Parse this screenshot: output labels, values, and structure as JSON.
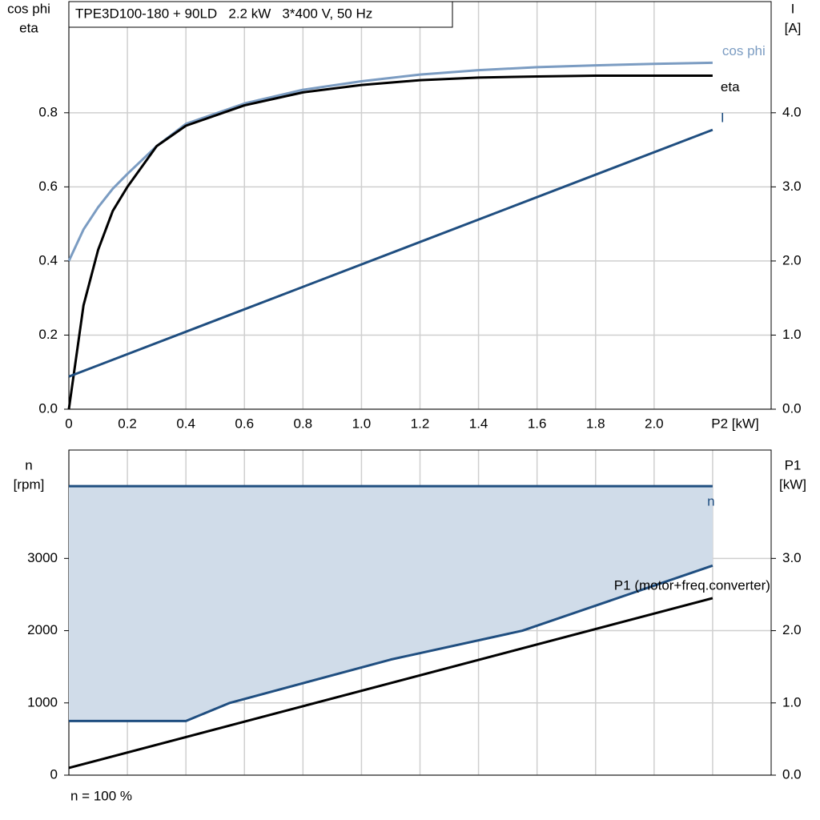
{
  "chart_data": [
    {
      "type": "line",
      "title": "TPE3D100-180 + 90LD   2.2 kW   3*400 V, 50 Hz",
      "ylabel": [
        "cos phi",
        "eta"
      ],
      "y2label": [
        "I",
        "[A]"
      ],
      "xlabel": "P2 [kW]",
      "x": [
        0,
        0.05,
        0.1,
        0.15,
        0.2,
        0.3,
        0.4,
        0.6,
        0.8,
        1.0,
        1.2,
        1.4,
        1.6,
        1.8,
        2.0,
        2.2
      ],
      "series": [
        {
          "name": "cos phi",
          "color": "#7b9cc2",
          "values": [
            0.4,
            0.485,
            0.545,
            0.595,
            0.635,
            0.71,
            0.77,
            0.825,
            0.862,
            0.885,
            0.903,
            0.915,
            0.923,
            0.928,
            0.932,
            0.935
          ]
        },
        {
          "name": "eta",
          "color": "#000000",
          "values": [
            0,
            0.28,
            0.43,
            0.535,
            0.6,
            0.71,
            0.765,
            0.82,
            0.855,
            0.875,
            0.888,
            0.895,
            0.898,
            0.9,
            0.9,
            0.9
          ]
        },
        {
          "name": "I",
          "color": "#1f4e80",
          "axis": "y2",
          "x": [
            0,
            2.2
          ],
          "values": [
            0.44,
            3.77
          ]
        }
      ],
      "xlim": [
        0,
        2.4
      ],
      "xticks": [
        {
          "value": 0,
          "label": "0"
        },
        0.2,
        0.4,
        0.6,
        0.8,
        {
          "value": 1,
          "label": "1.0"
        },
        1.2,
        1.4,
        1.6,
        1.8,
        {
          "value": 2,
          "label": "2.0"
        }
      ],
      "ylim": [
        0,
        1.1
      ],
      "yticks": [
        {
          "value": 0,
          "label": "0.0"
        },
        0.2,
        0.4,
        0.6,
        0.8
      ],
      "y2lim": [
        0,
        5.5
      ],
      "y2ticks": [
        {
          "value": 0,
          "label": "0.0"
        },
        {
          "value": 1,
          "label": "1.0"
        },
        {
          "value": 2,
          "label": "2.0"
        },
        {
          "value": 3,
          "label": "3.0"
        },
        {
          "value": 4,
          "label": "4.0"
        }
      ],
      "grid": true,
      "xtick_labels": true
    },
    {
      "type": "line",
      "ylabel": [
        "n",
        "[rpm]"
      ],
      "y2label": [
        "P1",
        "[kW]"
      ],
      "footer": "n = 100 %",
      "series": [
        {
          "name": "n",
          "color": "#1f4e80",
          "x": [
            0,
            2.2
          ],
          "values": [
            4000,
            4000
          ],
          "width": 3
        },
        {
          "color": "#1f4e80",
          "x": [
            0,
            0.4,
            0.55,
            1.1,
            1.55,
            2.2
          ],
          "values": [
            750,
            750,
            1000,
            1600,
            2000,
            2900
          ],
          "fill_up_to_series": 0,
          "fill": "#d0dce9"
        },
        {
          "name": "P1 (motor+freq.converter)",
          "color": "#000000",
          "axis": "y2",
          "x": [
            0,
            2.2
          ],
          "values": [
            0.1,
            2.45
          ]
        }
      ],
      "xlim": [
        0,
        2.4
      ],
      "xticks": [
        0,
        0.2,
        0.4,
        0.6,
        0.8,
        1,
        1.2,
        1.4,
        1.6,
        1.8,
        2,
        2.2
      ],
      "ylim": [
        0,
        4500
      ],
      "yticks": [
        0,
        1000,
        2000,
        3000
      ],
      "y2lim": [
        0,
        4.5
      ],
      "y2ticks": [
        {
          "value": 0,
          "label": "0.0"
        },
        {
          "value": 1,
          "label": "1.0"
        },
        {
          "value": 2,
          "label": "2.0"
        },
        {
          "value": 3,
          "label": "3.0"
        }
      ],
      "grid": true,
      "xtick_labels": false
    }
  ]
}
